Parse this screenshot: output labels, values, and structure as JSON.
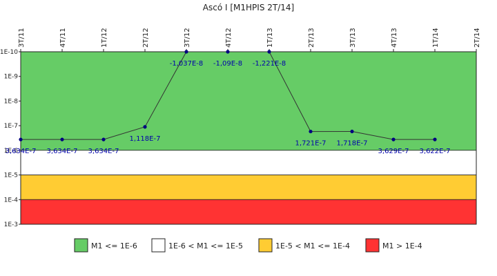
{
  "chart_data": {
    "type": "line",
    "title": "Ascó I [M1HPIS 2T/14]",
    "categories": [
      "3T/11",
      "4T/11",
      "1T/12",
      "2T/12",
      "3T/12",
      "4T/12",
      "1T/13",
      "2T/13",
      "3T/13",
      "4T/13",
      "1T/14",
      "2T/14"
    ],
    "series": [
      {
        "values": [
          3.634e-07,
          3.634e-07,
          3.634e-07,
          1.118e-07,
          -1.037e-08,
          -1.09e-08,
          -1.221e-08,
          1.721e-07,
          1.718e-07,
          3.629e-07,
          3.622e-07,
          null
        ],
        "labels": [
          "3,634E-7",
          "3,634E-7",
          "3,634E-7",
          "1,118E-7",
          "-1,037E-8",
          "-1,09E-8",
          "-1,221E-8",
          "1,721E-7",
          "1,718E-7",
          "3,629E-7",
          "3,622E-7",
          ""
        ],
        "color": "#000080"
      }
    ],
    "y_scale": "log-reversed",
    "ylim": [
      1e-10,
      0.001
    ],
    "y_ticks": [
      "1E-10",
      "1E-9",
      "1E-8",
      "1E-7",
      "1E-6",
      "1E-5",
      "1E-4",
      "1E-3"
    ],
    "bands": [
      {
        "label": "M1 <= 1E-6",
        "from": 1e-10,
        "to": 1e-06,
        "color": "#66cc66"
      },
      {
        "label": "1E-6 < M1 <= 1E-5",
        "from": 1e-06,
        "to": 1e-05,
        "color": "#ffffff"
      },
      {
        "label": "1E-5 < M1 <= 1E-4",
        "from": 1e-05,
        "to": 0.0001,
        "color": "#ffcc33"
      },
      {
        "label": "M1 > 1E-4",
        "from": 0.0001,
        "to": 0.001,
        "color": "#ff3333"
      }
    ],
    "legend_position": "bottom",
    "grid": false,
    "x_labels_position": "top"
  }
}
